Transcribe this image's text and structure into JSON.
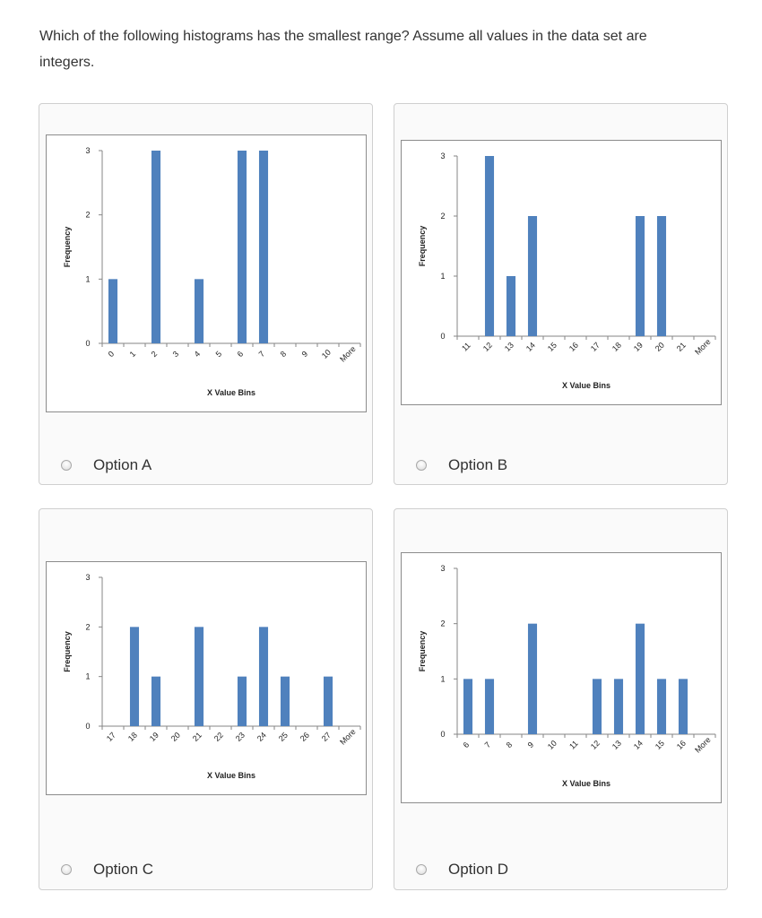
{
  "question": {
    "line1": "Which of the following histograms has the smallest range? Assume all values in the data set are",
    "line2": "integers."
  },
  "colors": {
    "bar": "#4f81bd",
    "axis": "#868686"
  },
  "options": [
    {
      "label": "Option A"
    },
    {
      "label": "Option B"
    },
    {
      "label": "Option C"
    },
    {
      "label": "Option D"
    }
  ],
  "chart_data": [
    {
      "type": "bar",
      "categories": [
        "0",
        "1",
        "2",
        "3",
        "4",
        "5",
        "6",
        "7",
        "8",
        "9",
        "10",
        "More"
      ],
      "values": [
        1,
        0,
        3,
        0,
        1,
        0,
        3,
        3,
        0,
        0,
        0,
        0
      ],
      "xlabel": "X Value Bins",
      "ylabel": "Frequency",
      "yticks": [
        "0",
        "1",
        "2",
        "3"
      ],
      "ylim": [
        0,
        3
      ],
      "grid": false,
      "legend": "none"
    },
    {
      "type": "bar",
      "categories": [
        "11",
        "12",
        "13",
        "14",
        "15",
        "16",
        "17",
        "18",
        "19",
        "20",
        "21",
        "More"
      ],
      "values": [
        0,
        3,
        1,
        2,
        0,
        0,
        0,
        0,
        2,
        2,
        0,
        0
      ],
      "xlabel": "X Value Bins",
      "ylabel": "Frequency",
      "yticks": [
        "0",
        "1",
        "2",
        "3"
      ],
      "ylim": [
        0,
        3
      ],
      "grid": false,
      "legend": "none"
    },
    {
      "type": "bar",
      "categories": [
        "17",
        "18",
        "19",
        "20",
        "21",
        "22",
        "23",
        "24",
        "25",
        "26",
        "27",
        "More"
      ],
      "values": [
        0,
        2,
        1,
        0,
        2,
        0,
        1,
        2,
        1,
        0,
        1,
        0
      ],
      "xlabel": "X Value Bins",
      "ylabel": "Frequency",
      "yticks": [
        "0",
        "1",
        "2",
        "3"
      ],
      "ylim": [
        0,
        3
      ],
      "grid": false,
      "legend": "none"
    },
    {
      "type": "bar",
      "categories": [
        "6",
        "7",
        "8",
        "9",
        "10",
        "11",
        "12",
        "13",
        "14",
        "15",
        "16",
        "More"
      ],
      "values": [
        1,
        1,
        0,
        2,
        0,
        0,
        1,
        1,
        2,
        1,
        1,
        0
      ],
      "xlabel": "X Value Bins",
      "ylabel": "Frequency",
      "yticks": [
        "0",
        "1",
        "2",
        "3"
      ],
      "ylim": [
        0,
        3
      ],
      "grid": false,
      "legend": "none"
    }
  ]
}
